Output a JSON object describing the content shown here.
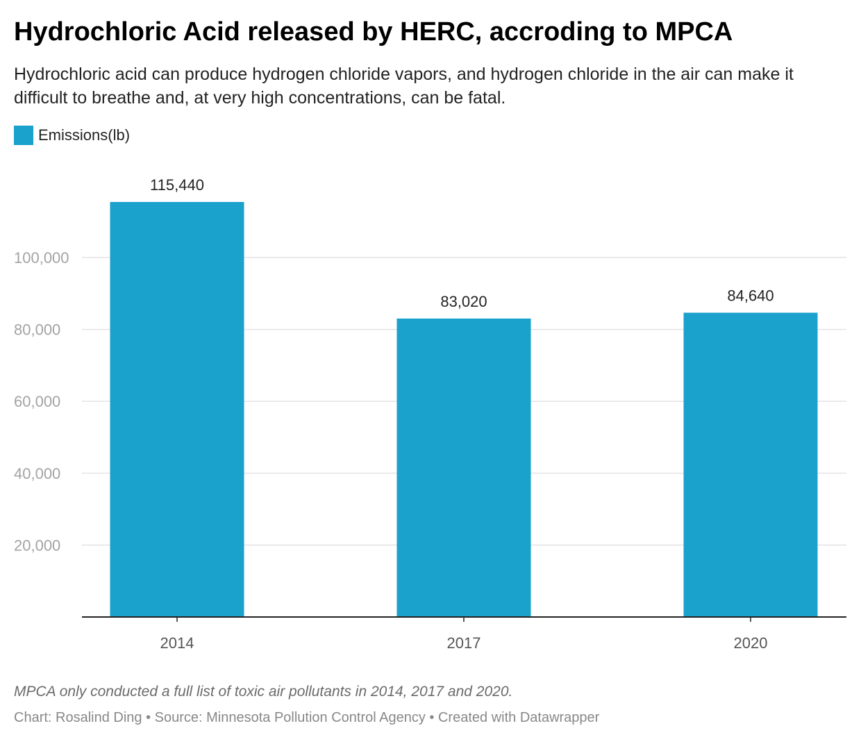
{
  "header": {
    "title": "Hydrochloric Acid released by HERC, accroding to MPCA",
    "subtitle": "Hydrochloric acid can produce hydrogen chloride vapors, and hydrogen chloride in the air can make it difficult to breathe and, at very high concentrations, can be fatal."
  },
  "legend": {
    "label": "Emissions(lb)"
  },
  "footer": {
    "notes": "MPCA only conducted a full list of toxic air pollutants in 2014, 2017 and 2020.",
    "credit": "Chart: Rosalind Ding • Source: Minnesota Pollution Control Agency • Created with Datawrapper"
  },
  "colors": {
    "bar": "#1aa1cc",
    "grid": "#e3e3e3",
    "axis": "#222222",
    "tick_text": "#a3a3a3",
    "category_text": "#555555",
    "label_text": "#222222"
  },
  "chart_data": {
    "type": "bar",
    "title": "Hydrochloric Acid released by HERC, accroding to MPCA",
    "xlabel": "",
    "ylabel": "",
    "categories": [
      "2014",
      "2017",
      "2020"
    ],
    "series": [
      {
        "name": "Emissions(lb)",
        "values": [
          115440,
          83020,
          84640
        ],
        "labels": [
          "115,440",
          "83,020",
          "84,640"
        ]
      }
    ],
    "yticks": [
      20000,
      40000,
      60000,
      80000,
      100000
    ],
    "ytick_labels": [
      "20,000",
      "40,000",
      "60,000",
      "80,000",
      "100,000"
    ],
    "ylim": [
      0,
      120000
    ],
    "grid": true,
    "legend": "top-left"
  }
}
